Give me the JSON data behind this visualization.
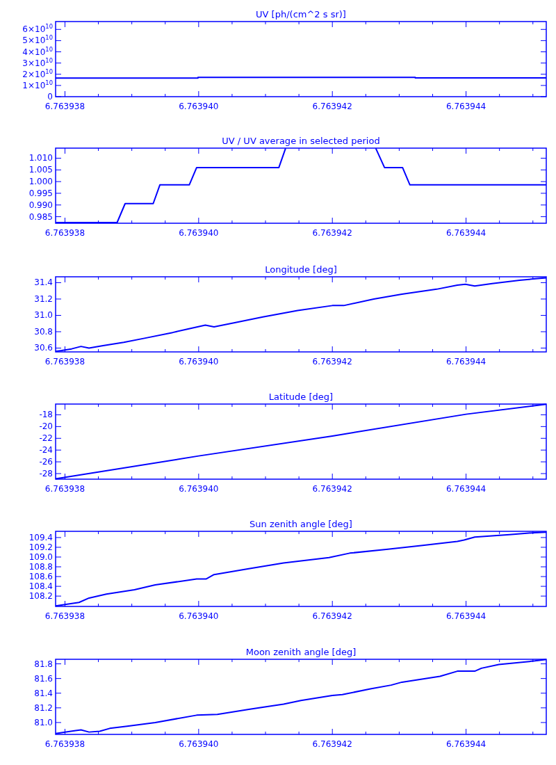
{
  "chart_data": [
    {
      "type": "step",
      "title": "UV [ph/(cm^2 s sr)]",
      "color": "#0000ff",
      "x": [
        6.76393786,
        6.76393999,
        6.76394324,
        6.7639452
      ],
      "values": [
        16600000000,
        17200000000,
        16800000000,
        16800000000
      ],
      "xlim": [
        6.76393786,
        6.7639452
      ],
      "ylim": [
        0,
        67000000000
      ],
      "xticks": [
        6.763938,
        {
          "value": 6.7639385,
          "label": null
        },
        {
          "value": 6.763939,
          "label": null
        },
        {
          "value": 6.7639395,
          "label": null
        },
        {
          "value": 6.76394,
          "label": "6.763940"
        },
        {
          "value": 6.7639405,
          "label": null
        },
        {
          "value": 6.763941,
          "label": null
        },
        {
          "value": 6.7639415,
          "label": null
        },
        6.763942,
        {
          "value": 6.7639425,
          "label": null
        },
        {
          "value": 6.763943,
          "label": null
        },
        {
          "value": 6.7639435,
          "label": null
        },
        6.763944,
        {
          "value": 6.7639445,
          "label": null
        },
        {
          "value": 6.763945,
          "label": null
        }
      ],
      "yticks": [
        0,
        {
          "value": 10000000000,
          "label": "1×10$^{10}$"
        },
        {
          "value": 20000000000,
          "label": "2×10$^{10}$"
        },
        {
          "value": 30000000000,
          "label": "3×10$^{10}$"
        },
        {
          "value": 40000000000,
          "label": "4×10$^{10}$"
        },
        {
          "value": 50000000000,
          "label": "5×10$^{10}$"
        },
        {
          "value": 60000000000,
          "label": "6×10$^{10}$"
        }
      ]
    },
    {
      "type": "line",
      "title": "UV / UV average in selected period",
      "color": "#0000ff",
      "x": [
        6.76393786,
        6.76393878,
        6.7639389,
        6.76393932,
        6.76393942,
        6.76393986,
        6.76393997,
        6.7639412,
        6.7639413,
        6.763942,
        6.76394265,
        6.76394278,
        6.76394305,
        6.76394316,
        6.7639452
      ],
      "values": [
        0.9825,
        0.9825,
        0.9906,
        0.9906,
        0.9986,
        0.9986,
        1.006,
        1.006,
        1.0142,
        null,
        1.0142,
        1.006,
        1.006,
        0.9986,
        0.9986
      ],
      "xlim": [
        6.76393786,
        6.7639452
      ],
      "ylim": [
        0.9822,
        1.0143
      ],
      "xticks": [
        6.763938,
        {
          "value": 6.7639385,
          "label": null
        },
        {
          "value": 6.763939,
          "label": null
        },
        {
          "value": 6.7639395,
          "label": null
        },
        {
          "value": 6.76394,
          "label": "6.763940"
        },
        {
          "value": 6.7639405,
          "label": null
        },
        {
          "value": 6.763941,
          "label": null
        },
        {
          "value": 6.7639415,
          "label": null
        },
        6.763942,
        {
          "value": 6.7639425,
          "label": null
        },
        {
          "value": 6.763943,
          "label": null
        },
        {
          "value": 6.7639435,
          "label": null
        },
        6.763944,
        {
          "value": 6.7639445,
          "label": null
        },
        {
          "value": 6.763945,
          "label": null
        }
      ],
      "yticks": [
        0.985,
        {
          "value": 0.99,
          "label": "0.990"
        },
        0.995,
        {
          "value": 1,
          "label": "1.000"
        },
        1.005,
        {
          "value": 1.01,
          "label": "1.010"
        }
      ]
    },
    {
      "type": "line",
      "title": "Longitude [deg]",
      "color": "#0000ff",
      "x": [
        6.76393786,
        6.76393795,
        6.7639381,
        6.76393824,
        6.76393836,
        6.76393857,
        6.76393888,
        6.76393919,
        6.76393961,
        6.76393982,
        6.7639401,
        6.76394023,
        6.76394054,
        6.76394096,
        6.76394148,
        6.763942,
        6.76394217,
        6.76394262,
        6.76394304,
        6.76394356,
        6.76394387,
        6.76394399,
        6.76394413,
        6.76394439,
        6.7639448,
        6.7639452
      ],
      "values": [
        30.56,
        30.57,
        30.59,
        30.62,
        30.6,
        30.63,
        30.67,
        30.72,
        30.79,
        30.83,
        30.88,
        30.86,
        30.91,
        30.98,
        31.06,
        31.12,
        31.12,
        31.2,
        31.26,
        31.32,
        31.37,
        31.38,
        31.36,
        31.39,
        31.43,
        31.46
      ],
      "xlim": [
        6.76393786,
        6.7639452
      ],
      "ylim": [
        30.553,
        31.472
      ],
      "xticks": [
        6.763938,
        {
          "value": 6.7639385,
          "label": null
        },
        {
          "value": 6.763939,
          "label": null
        },
        {
          "value": 6.7639395,
          "label": null
        },
        {
          "value": 6.76394,
          "label": "6.763940"
        },
        {
          "value": 6.7639405,
          "label": null
        },
        {
          "value": 6.763941,
          "label": null
        },
        {
          "value": 6.7639415,
          "label": null
        },
        6.763942,
        {
          "value": 6.7639425,
          "label": null
        },
        {
          "value": 6.763943,
          "label": null
        },
        {
          "value": 6.7639435,
          "label": null
        },
        6.763944,
        {
          "value": 6.7639445,
          "label": null
        },
        {
          "value": 6.763945,
          "label": null
        }
      ],
      "yticks": [
        30.6,
        30.8,
        {
          "value": 31,
          "label": "31.0"
        },
        31.2,
        31.4
      ]
    },
    {
      "type": "line",
      "title": "Latitude [deg]",
      "color": "#0000ff",
      "x": [
        6.76393786,
        6.76394,
        6.763942,
        6.763944,
        6.7639452
      ],
      "values": [
        -28.9,
        -25.0,
        -21.6,
        -17.9,
        -16.2
      ],
      "xlim": [
        6.76393786,
        6.7639452
      ],
      "ylim": [
        -28.95,
        -16.17
      ],
      "xticks": [
        6.763938,
        {
          "value": 6.7639385,
          "label": null
        },
        {
          "value": 6.763939,
          "label": null
        },
        {
          "value": 6.7639395,
          "label": null
        },
        {
          "value": 6.76394,
          "label": "6.763940"
        },
        {
          "value": 6.7639405,
          "label": null
        },
        {
          "value": 6.763941,
          "label": null
        },
        {
          "value": 6.7639415,
          "label": null
        },
        6.763942,
        {
          "value": 6.7639425,
          "label": null
        },
        {
          "value": 6.763943,
          "label": null
        },
        {
          "value": 6.7639435,
          "label": null
        },
        6.763944,
        {
          "value": 6.7639445,
          "label": null
        },
        {
          "value": 6.763945,
          "label": null
        }
      ],
      "yticks": [
        -28,
        -26,
        -24,
        -22,
        -20,
        -18
      ]
    },
    {
      "type": "line",
      "title": "Sun zenith angle [deg]",
      "color": "#0000ff",
      "x": [
        6.76393786,
        6.76393821,
        6.76393836,
        6.76393862,
        6.76393904,
        6.76393935,
        6.76393997,
        6.76394011,
        6.76394023,
        6.76394075,
        6.76394127,
        6.76394195,
        6.76394226,
        6.76394283,
        6.76394335,
        6.76394387,
        6.76394397,
        6.76394413,
        6.76394465,
        6.76394503,
        6.7639452
      ],
      "values": [
        108.0,
        108.07,
        108.16,
        108.24,
        108.33,
        108.43,
        108.55,
        108.55,
        108.64,
        108.76,
        108.88,
        108.99,
        109.08,
        109.16,
        109.24,
        109.32,
        109.35,
        109.41,
        109.46,
        109.5,
        109.51
      ],
      "xlim": [
        6.76393786,
        6.7639452
      ],
      "ylim": [
        107.988,
        109.527
      ],
      "xticks": [
        6.763938,
        {
          "value": 6.7639385,
          "label": null
        },
        {
          "value": 6.763939,
          "label": null
        },
        {
          "value": 6.7639395,
          "label": null
        },
        {
          "value": 6.76394,
          "label": "6.763940"
        },
        {
          "value": 6.7639405,
          "label": null
        },
        {
          "value": 6.763941,
          "label": null
        },
        {
          "value": 6.7639415,
          "label": null
        },
        6.763942,
        {
          "value": 6.7639425,
          "label": null
        },
        {
          "value": 6.763943,
          "label": null
        },
        {
          "value": 6.7639435,
          "label": null
        },
        6.763944,
        {
          "value": 6.7639445,
          "label": null
        },
        {
          "value": 6.763945,
          "label": null
        }
      ],
      "yticks": [
        108.2,
        108.4,
        108.6,
        108.8,
        {
          "value": 109,
          "label": "109.0"
        },
        109.2,
        109.4
      ]
    },
    {
      "type": "line",
      "title": "Moon zenith angle [deg]",
      "color": "#0000ff",
      "x": [
        6.76393786,
        6.76393816,
        6.76393824,
        6.76393836,
        6.76393852,
        6.76393867,
        6.76393893,
        6.76393935,
        6.76393997,
        6.76394028,
        6.76394075,
        6.76394127,
        6.76394153,
        6.763942,
        6.76394215,
        6.76394257,
        6.76394288,
        6.76394304,
        6.76394361,
        6.76394387,
        6.76394413,
        6.76394423,
        6.76394449,
        6.76394503,
        6.7639452
      ],
      "values": [
        80.85,
        80.89,
        80.9,
        80.87,
        80.88,
        80.92,
        80.95,
        81.0,
        81.1,
        81.11,
        81.18,
        81.25,
        81.3,
        81.37,
        81.38,
        81.46,
        81.51,
        81.55,
        81.63,
        81.7,
        81.7,
        81.74,
        81.79,
        81.84,
        81.86
      ],
      "xlim": [
        6.76393786,
        6.7639452
      ],
      "ylim": [
        80.838,
        81.862
      ],
      "xticks": [
        6.763938,
        {
          "value": 6.7639385,
          "label": null
        },
        {
          "value": 6.763939,
          "label": null
        },
        {
          "value": 6.7639395,
          "label": null
        },
        {
          "value": 6.76394,
          "label": "6.763940"
        },
        {
          "value": 6.7639405,
          "label": null
        },
        {
          "value": 6.763941,
          "label": null
        },
        {
          "value": 6.7639415,
          "label": null
        },
        6.763942,
        {
          "value": 6.7639425,
          "label": null
        },
        {
          "value": 6.763943,
          "label": null
        },
        {
          "value": 6.7639435,
          "label": null
        },
        6.763944,
        {
          "value": 6.7639445,
          "label": null
        },
        {
          "value": 6.763945,
          "label": null
        }
      ],
      "yticks": [
        {
          "value": 81,
          "label": "81.0"
        },
        81.2,
        81.4,
        81.6,
        81.8
      ]
    }
  ]
}
